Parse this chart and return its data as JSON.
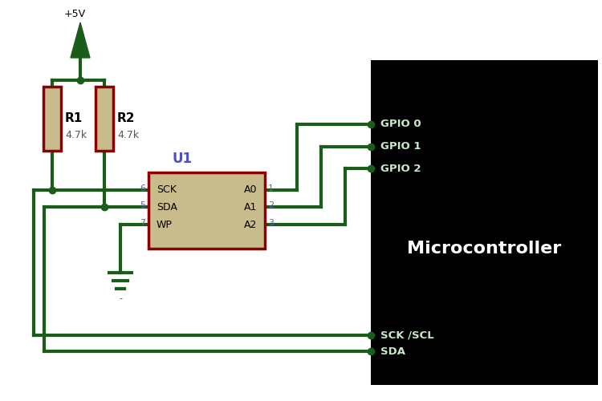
{
  "bg_color": "#ffffff",
  "mc_bg_color": "#000000",
  "wire_color": "#1a5c1a",
  "resistor_body_color": "#c8bc8c",
  "resistor_border_color": "#8b0000",
  "ic_body_color": "#c8bc8c",
  "ic_border_color": "#8b0000",
  "pin_label_color": "#6060a0",
  "u1_label_color": "#5050c0",
  "mc_text_color": "#ffffff",
  "gpio_text_color": "#c8e8c8",
  "mc_label": "Microcontroller",
  "r1_label": "R1",
  "r1_val": "4.7k",
  "r2_label": "R2",
  "r2_val": "4.7k",
  "u1_label": "U1",
  "vcc_label": "+5V",
  "ic_left_pins": [
    "SCK",
    "SDA",
    "WP"
  ],
  "ic_right_pins": [
    "A0",
    "A1",
    "A2"
  ],
  "ic_left_nums": [
    "6",
    "5",
    "7"
  ],
  "ic_right_nums": [
    "1",
    "2",
    "3"
  ],
  "gpio_labels": [
    "GPIO 0",
    "GPIO 1",
    "GPIO 2"
  ],
  "scl_label": "SCK /SCL",
  "sda_label": "SDA",
  "dot_color": "#1a5c1a",
  "lw": 3.0
}
